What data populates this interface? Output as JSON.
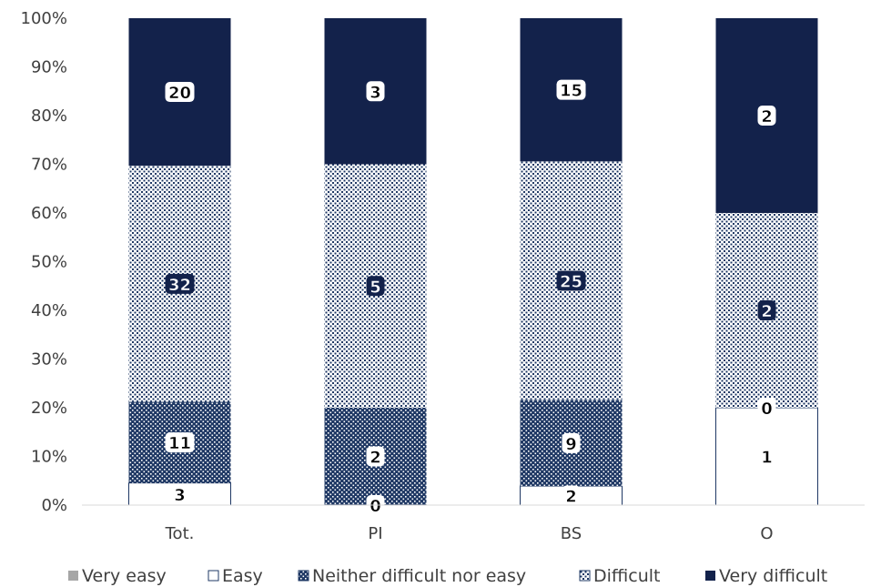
{
  "chart_data": {
    "type": "bar",
    "stacked": "percent",
    "categories": [
      "Tot.",
      "PI",
      "BS",
      "O"
    ],
    "series": [
      {
        "name": "Very easy",
        "values": [
          0,
          0,
          0,
          0
        ],
        "color": "#a6a6a6",
        "labels": [
          "",
          "",
          "",
          ""
        ]
      },
      {
        "name": "Easy",
        "values": [
          3,
          0,
          2,
          1
        ],
        "color": "#ffffff",
        "labels": [
          "3",
          "0",
          "2",
          "1"
        ]
      },
      {
        "name": "Neither difficult nor easy",
        "values": [
          11,
          2,
          9,
          0
        ],
        "color": "#1f3864",
        "labels": [
          "11",
          "2",
          "9",
          "0"
        ]
      },
      {
        "name": "Difficult",
        "values": [
          32,
          5,
          25,
          2
        ],
        "color": "#8497b0",
        "labels": [
          "32",
          "5",
          "25",
          "2"
        ]
      },
      {
        "name": "Very difficult",
        "values": [
          20,
          3,
          15,
          2
        ],
        "color": "#13224b",
        "labels": [
          "20",
          "3",
          "15",
          "2"
        ]
      }
    ],
    "y_ticks": [
      "0%",
      "10%",
      "20%",
      "30%",
      "40%",
      "50%",
      "60%",
      "70%",
      "80%",
      "90%",
      "100%"
    ],
    "ylim": [
      0,
      100
    ],
    "grid": false,
    "legend": "bottom"
  }
}
